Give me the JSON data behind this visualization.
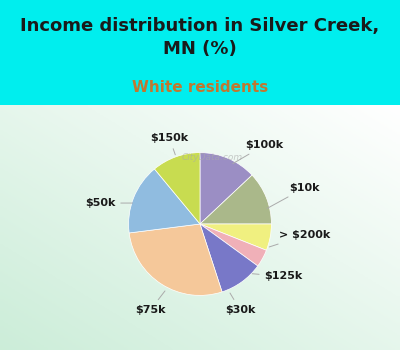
{
  "title": "Income distribution in Silver Creek,\nMN (%)",
  "subtitle": "White residents",
  "background_color": "#00EEEE",
  "labels": [
    "$100k",
    "$10k",
    "> $200k",
    "$125k",
    "$30k",
    "$75k",
    "$50k",
    "$150k"
  ],
  "sizes": [
    13,
    12,
    6,
    4,
    10,
    28,
    16,
    11
  ],
  "colors": [
    "#9b8ec4",
    "#aab88a",
    "#f0f080",
    "#f0b0b8",
    "#7878c8",
    "#f5c89a",
    "#90bce0",
    "#c8dc50"
  ],
  "title_fontsize": 13,
  "subtitle_fontsize": 11,
  "subtitle_color": "#c07830",
  "label_fontsize": 8,
  "watermark": "CityData.com"
}
